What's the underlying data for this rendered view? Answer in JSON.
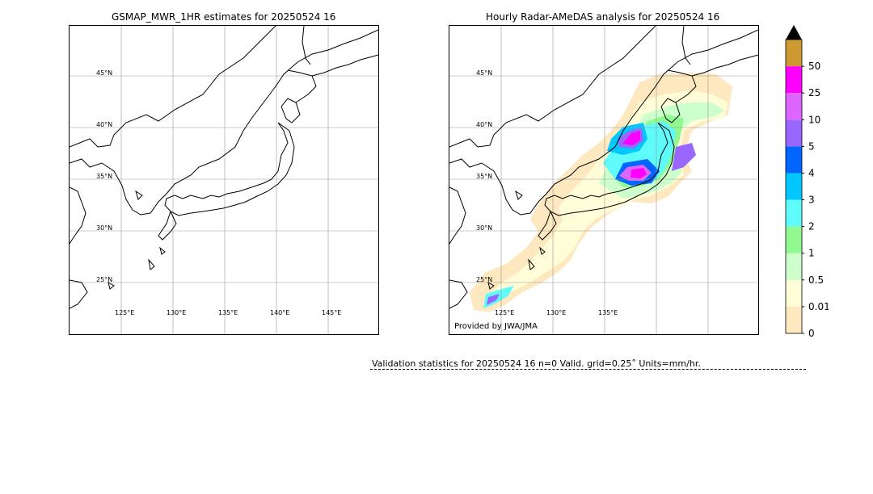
{
  "left_panel": {
    "title": "GSMAP_MWR_1HR estimates for 20250524 16",
    "lat_labels": [
      "45°N",
      "40°N",
      "35°N",
      "30°N",
      "25°N"
    ],
    "lon_labels": [
      "125°E",
      "130°E",
      "135°E",
      "140°E",
      "145°E"
    ]
  },
  "right_panel": {
    "title": "Hourly Radar-AMeDAS analysis for 20250524 16",
    "lat_labels": [
      "45°N",
      "40°N",
      "35°N",
      "30°N",
      "25°N"
    ],
    "lon_labels": [
      "125°E",
      "130°E",
      "135°E"
    ],
    "credit": "Provided by JWA/JMA"
  },
  "colorbar": {
    "labels": [
      "0",
      "0.01",
      "0.5",
      "1",
      "2",
      "3",
      "4",
      "5",
      "10",
      "25",
      "50"
    ],
    "colors": [
      "#fde8bf",
      "#fffdd8",
      "#ccffcc",
      "#90fa90",
      "#5ffafa",
      "#00c8ff",
      "#0066ff",
      "#9966ff",
      "#dd66ff",
      "#ff00ff",
      "#cc9933"
    ],
    "extend_color": "#000000"
  },
  "stats": {
    "text": "Validation statistics for 20250524 16  n=0 Valid. grid=0.25˚ Units=mm/hr."
  }
}
